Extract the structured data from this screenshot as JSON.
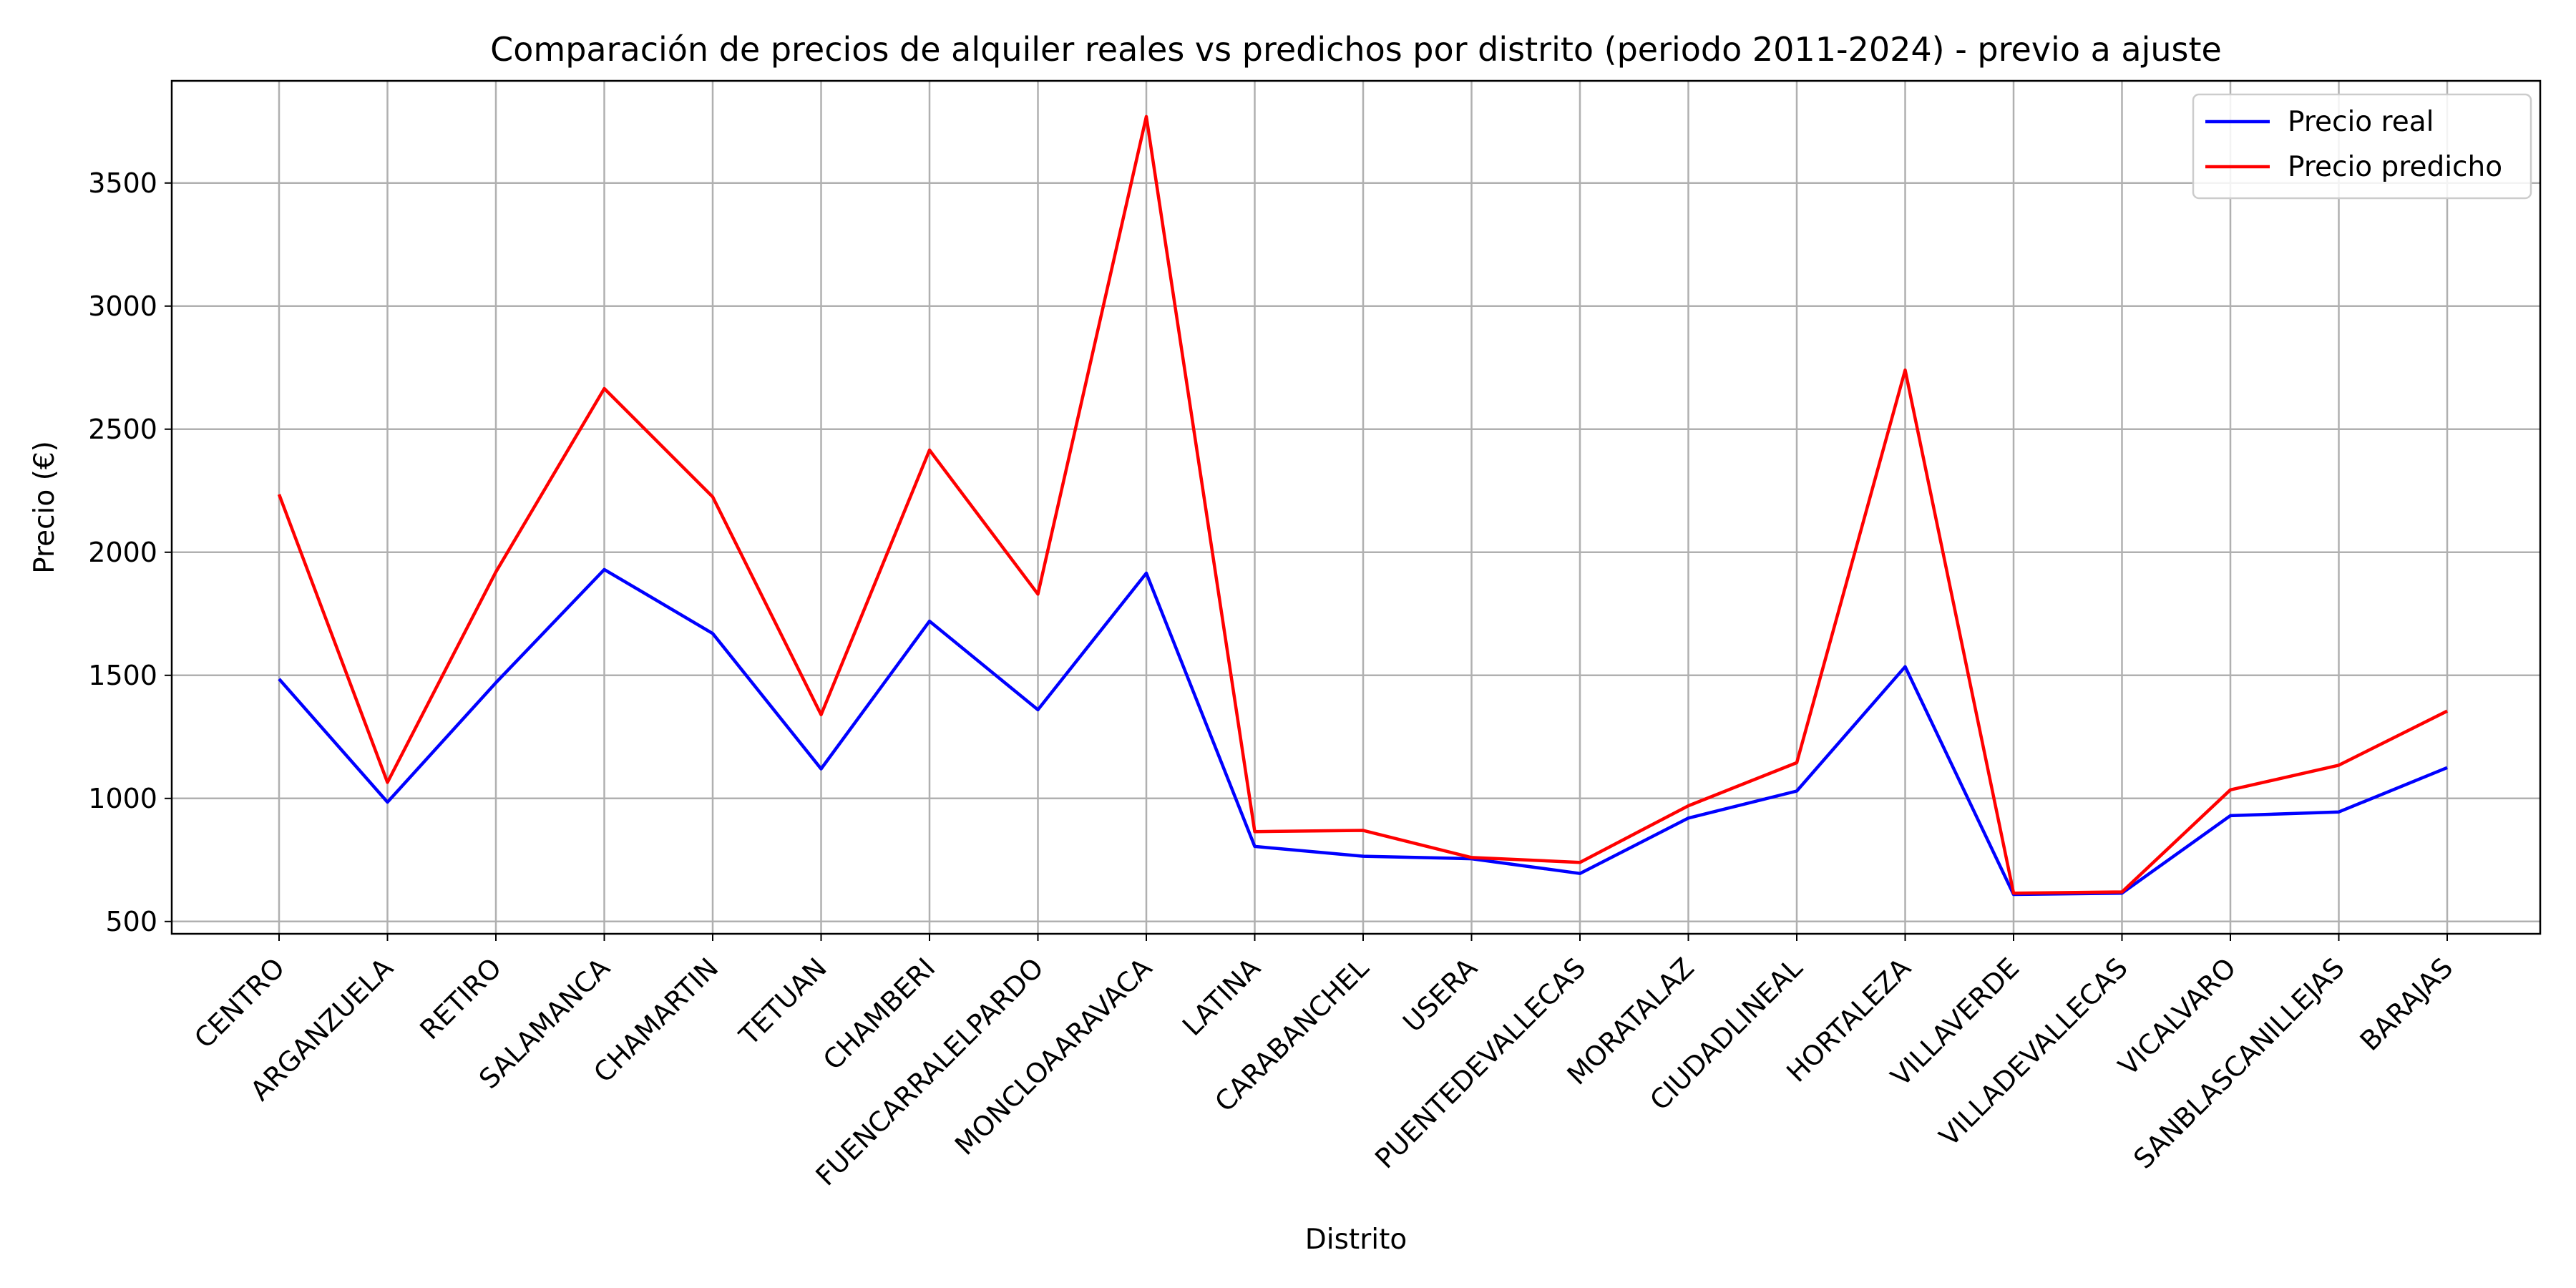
{
  "chart_data": {
    "type": "line",
    "title": "Comparación de precios de alquiler reales vs predichos por distrito (periodo 2011-2024) - previo a ajuste",
    "xlabel": "Distrito",
    "ylabel": "Precio (€)",
    "categories": [
      "CENTRO",
      "ARGANZUELA",
      "RETIRO",
      "SALAMANCA",
      "CHAMARTIN",
      "TETUAN",
      "CHAMBERI",
      "FUENCARRALELPARDO",
      "MONCLOAARAVACA",
      "LATINA",
      "CARABANCHEL",
      "USERA",
      "PUENTEDEVALLECAS",
      "MORATALAZ",
      "CIUDADLINEAL",
      "HORTALEZA",
      "VILLAVERDE",
      "VILLADEVALLECAS",
      "VICALVARO",
      "SANBLASCANILLEJAS",
      "BARAJAS"
    ],
    "series": [
      {
        "name": "Precio real",
        "color": "#0000ff",
        "values": [
          1485,
          985,
          1470,
          1930,
          1670,
          1120,
          1720,
          1360,
          1915,
          805,
          765,
          755,
          695,
          920,
          1030,
          1535,
          610,
          615,
          930,
          945,
          1125
        ]
      },
      {
        "name": "Precio predicho",
        "color": "#ff0000",
        "values": [
          2235,
          1065,
          1920,
          2665,
          2225,
          1340,
          2415,
          1830,
          3770,
          865,
          870,
          760,
          740,
          970,
          1145,
          2740,
          615,
          620,
          1035,
          1135,
          1355
        ]
      }
    ],
    "yticks": [
      500,
      1000,
      1500,
      2000,
      2500,
      3000,
      3500
    ],
    "ylim": [
      450,
      3915
    ],
    "grid": true,
    "legend_position": "top-right"
  }
}
